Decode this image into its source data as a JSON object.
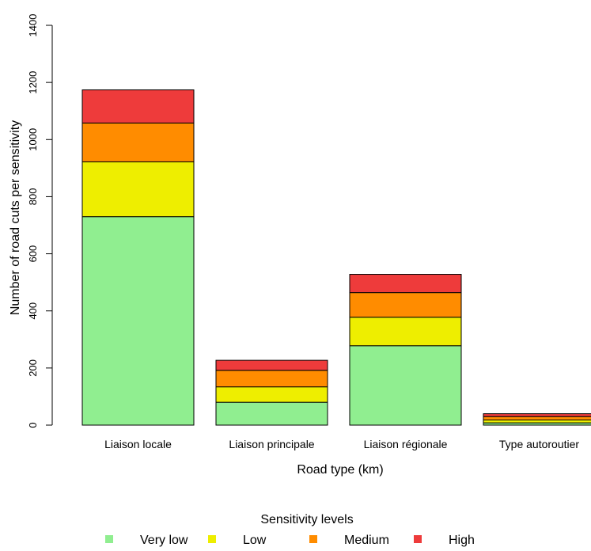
{
  "chart_data": {
    "type": "bar",
    "stacked": true,
    "xlabel": "Road type (km)",
    "ylabel": "Number of road cuts per sensitivity",
    "ylim": [
      0,
      1400
    ],
    "yticks": [
      0,
      200,
      400,
      600,
      800,
      1000,
      1200,
      1400
    ],
    "grid": false,
    "categories": [
      "Liaison locale",
      "Liaison principale",
      "Liaison régionale",
      "Type autoroutier"
    ],
    "series": [
      {
        "name": "Very low",
        "color": "#90ee90",
        "values": [
          730,
          80,
          278,
          8
        ]
      },
      {
        "name": "Low",
        "color": "#eeee00",
        "values": [
          192,
          54,
          100,
          10
        ]
      },
      {
        "name": "Medium",
        "color": "#ff8c00",
        "values": [
          136,
          58,
          86,
          12
        ]
      },
      {
        "name": "High",
        "color": "#ee3b3b",
        "values": [
          116,
          35,
          64,
          10
        ]
      }
    ],
    "legend": {
      "title": "Sensitivity levels",
      "position": "bottom",
      "entries": [
        "Very low",
        "Low",
        "Medium",
        "High"
      ]
    }
  }
}
